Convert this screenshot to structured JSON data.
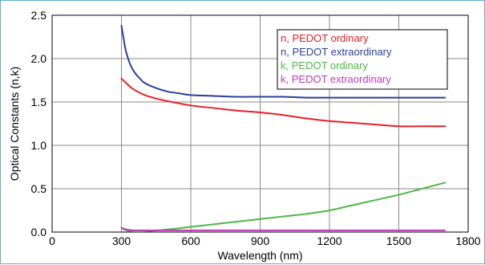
{
  "chart_data": {
    "type": "line",
    "xlabel": "Wavelength (nm)",
    "ylabel": "Optical Constants (n,k)",
    "xlim": [
      0,
      1800
    ],
    "ylim": [
      0,
      2.5
    ],
    "xticks": [
      0,
      300,
      600,
      900,
      1200,
      1500,
      1800
    ],
    "xtick_labels": [
      "0",
      "300",
      "600",
      "900",
      "1200",
      "1500",
      "1800"
    ],
    "yticks": [
      0,
      0.5,
      1.0,
      1.5,
      2.0,
      2.5
    ],
    "ytick_labels": [
      "0.0",
      "0.5",
      "1.0",
      "1.5",
      "2.0",
      "2.5"
    ],
    "grid": true,
    "legend_position": "top-right",
    "series": [
      {
        "name": "n, PEDOT ordinary",
        "color": "#e8202a",
        "x": [
          300,
          320,
          350,
          400,
          450,
          500,
          600,
          700,
          800,
          900,
          1000,
          1100,
          1200,
          1300,
          1400,
          1500,
          1600,
          1700
        ],
        "y": [
          1.77,
          1.72,
          1.65,
          1.58,
          1.54,
          1.51,
          1.46,
          1.43,
          1.4,
          1.38,
          1.35,
          1.31,
          1.28,
          1.26,
          1.24,
          1.22,
          1.22,
          1.22
        ]
      },
      {
        "name": "n, PEDOT extraordinary",
        "color": "#2b3f9a",
        "x": [
          300,
          310,
          320,
          340,
          360,
          380,
          400,
          450,
          500,
          550,
          600,
          700,
          800,
          900,
          1000,
          1100,
          1200,
          1300,
          1400,
          1500,
          1600,
          1700
        ],
        "y": [
          2.38,
          2.22,
          2.08,
          1.92,
          1.83,
          1.77,
          1.72,
          1.66,
          1.62,
          1.6,
          1.58,
          1.57,
          1.56,
          1.56,
          1.56,
          1.55,
          1.55,
          1.55,
          1.55,
          1.55,
          1.55,
          1.55
        ],
        "_comment": ""
      },
      {
        "name": "k, PEDOT ordinary",
        "color": "#4db848",
        "x": [
          300,
          320,
          350,
          400,
          500,
          600,
          700,
          800,
          900,
          1000,
          1100,
          1200,
          1300,
          1400,
          1500,
          1600,
          1700
        ],
        "y": [
          0.05,
          0.02,
          0.01,
          0.01,
          0.03,
          0.06,
          0.09,
          0.12,
          0.15,
          0.18,
          0.21,
          0.25,
          0.31,
          0.37,
          0.43,
          0.5,
          0.57
        ]
      },
      {
        "name": "k, PEDOT extraordinary",
        "color": "#c43ab7",
        "x": [
          300,
          320,
          350,
          400,
          500,
          600,
          700,
          800,
          900,
          1000,
          1100,
          1200,
          1300,
          1400,
          1500,
          1600,
          1700
        ],
        "y": [
          0.05,
          0.03,
          0.02,
          0.02,
          0.02,
          0.02,
          0.02,
          0.02,
          0.02,
          0.02,
          0.02,
          0.02,
          0.02,
          0.02,
          0.02,
          0.02,
          0.02
        ]
      }
    ]
  }
}
